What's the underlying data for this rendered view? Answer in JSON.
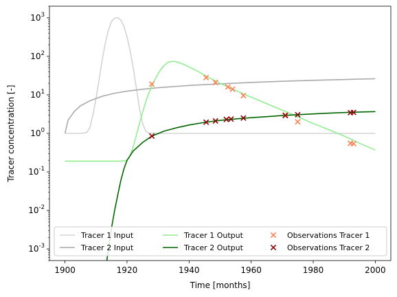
{
  "chart_data": {
    "type": "line",
    "title": "",
    "xlabel": "Time [months]",
    "ylabel": "Tracer concentration [-]",
    "xlim": [
      1895,
      2005
    ],
    "ylim": [
      0.0005,
      2000
    ],
    "yscale": "log",
    "grid": false,
    "legend_position": "lower center",
    "x_ticks": [
      "1900",
      "1920",
      "1940",
      "1960",
      "1980",
      "2000"
    ],
    "y_ticks": [
      {
        "base": "10",
        "exp": "-3",
        "value": 0.001
      },
      {
        "base": "10",
        "exp": "-2",
        "value": 0.01
      },
      {
        "base": "10",
        "exp": "-1",
        "value": 0.1
      },
      {
        "base": "10",
        "exp": "0",
        "value": 1
      },
      {
        "base": "10",
        "exp": "1",
        "value": 10
      },
      {
        "base": "10",
        "exp": "2",
        "value": 100
      },
      {
        "base": "10",
        "exp": "3",
        "value": 1000
      }
    ],
    "series": [
      {
        "name": "Tracer 1 Input",
        "kind": "line",
        "color": "#d3d3d3",
        "points": [
          [
            1900,
            1.0
          ],
          [
            1905,
            1.0
          ],
          [
            1907,
            1.05
          ],
          [
            1908,
            1.4
          ],
          [
            1909,
            3
          ],
          [
            1910,
            8
          ],
          [
            1911,
            25
          ],
          [
            1912,
            80
          ],
          [
            1913,
            220
          ],
          [
            1914,
            480
          ],
          [
            1915,
            800
          ],
          [
            1916,
            980
          ],
          [
            1917,
            1000
          ],
          [
            1918,
            880
          ],
          [
            1919,
            600
          ],
          [
            1920,
            320
          ],
          [
            1921,
            140
          ],
          [
            1922,
            50
          ],
          [
            1923,
            15
          ],
          [
            1924,
            4.5
          ],
          [
            1925,
            1.8
          ],
          [
            1926,
            1.15
          ],
          [
            1927,
            1.02
          ],
          [
            1930,
            1.0
          ],
          [
            1950,
            1.0
          ],
          [
            1980,
            1.0
          ],
          [
            2000,
            1.0
          ]
        ]
      },
      {
        "name": "Tracer 2 Input",
        "kind": "line",
        "color": "#a9a9a9",
        "points": [
          [
            1900,
            1.0
          ],
          [
            1901,
            2.2
          ],
          [
            1903,
            3.7
          ],
          [
            1905,
            5.2
          ],
          [
            1908,
            7.0
          ],
          [
            1912,
            9.2
          ],
          [
            1916,
            11.0
          ],
          [
            1920,
            12.5
          ],
          [
            1925,
            14.0
          ],
          [
            1930,
            15.3
          ],
          [
            1940,
            17.5
          ],
          [
            1950,
            19.3
          ],
          [
            1960,
            21.0
          ],
          [
            1970,
            22.5
          ],
          [
            1980,
            23.8
          ],
          [
            1990,
            25.0
          ],
          [
            2000,
            26.2
          ]
        ]
      },
      {
        "name": "Tracer 1 Output",
        "kind": "line",
        "color": "#90ee90",
        "points": [
          [
            1900,
            0.19
          ],
          [
            1918,
            0.19
          ],
          [
            1920,
            0.2
          ],
          [
            1921,
            0.26
          ],
          [
            1922,
            0.45
          ],
          [
            1923,
            0.9
          ],
          [
            1924,
            1.8
          ],
          [
            1925,
            3.5
          ],
          [
            1926,
            6.5
          ],
          [
            1927,
            11
          ],
          [
            1928,
            17
          ],
          [
            1929,
            25
          ],
          [
            1930,
            35
          ],
          [
            1931,
            47
          ],
          [
            1932,
            58
          ],
          [
            1933,
            68
          ],
          [
            1934,
            73
          ],
          [
            1935,
            74
          ],
          [
            1936,
            72
          ],
          [
            1938,
            63
          ],
          [
            1940,
            53
          ],
          [
            1943,
            40
          ],
          [
            1946,
            29
          ],
          [
            1950,
            20
          ],
          [
            1955,
            13
          ],
          [
            1960,
            8.7
          ],
          [
            1965,
            5.9
          ],
          [
            1970,
            4.0
          ],
          [
            1975,
            2.7
          ],
          [
            1980,
            1.8
          ],
          [
            1985,
            1.25
          ],
          [
            1990,
            0.85
          ],
          [
            1995,
            0.55
          ],
          [
            2000,
            0.37
          ]
        ]
      },
      {
        "name": "Tracer 2 Output",
        "kind": "line",
        "color": "#006400",
        "points": [
          [
            1913.5,
            0.0005
          ],
          [
            1914,
            0.001
          ],
          [
            1915,
            0.0035
          ],
          [
            1916,
            0.01
          ],
          [
            1917,
            0.025
          ],
          [
            1918,
            0.06
          ],
          [
            1919,
            0.12
          ],
          [
            1920,
            0.2
          ],
          [
            1922,
            0.35
          ],
          [
            1925,
            0.58
          ],
          [
            1928,
            0.85
          ],
          [
            1932,
            1.15
          ],
          [
            1936,
            1.4
          ],
          [
            1940,
            1.65
          ],
          [
            1945,
            1.93
          ],
          [
            1950,
            2.18
          ],
          [
            1955,
            2.38
          ],
          [
            1960,
            2.55
          ],
          [
            1965,
            2.72
          ],
          [
            1970,
            2.9
          ],
          [
            1975,
            3.05
          ],
          [
            1980,
            3.2
          ],
          [
            1985,
            3.35
          ],
          [
            1990,
            3.47
          ],
          [
            1995,
            3.58
          ],
          [
            2000,
            3.68
          ]
        ]
      },
      {
        "name": "Observations Tracer 1",
        "kind": "scatter",
        "marker": "x",
        "color": "#ff7f50",
        "points": [
          [
            1928,
            19
          ],
          [
            1945.5,
            28
          ],
          [
            1948.5,
            21
          ],
          [
            1952.5,
            16
          ],
          [
            1954,
            14
          ],
          [
            1957.5,
            9.5
          ],
          [
            1971,
            3.0
          ],
          [
            1975,
            2.0
          ],
          [
            1992,
            0.55
          ],
          [
            1993,
            0.54
          ]
        ]
      },
      {
        "name": "Observations Tracer 2",
        "kind": "scatter",
        "marker": "x",
        "color": "#8b0000",
        "points": [
          [
            1928,
            0.85
          ],
          [
            1945.5,
            1.95
          ],
          [
            1948.5,
            2.1
          ],
          [
            1952,
            2.3
          ],
          [
            1953.5,
            2.35
          ],
          [
            1957.5,
            2.5
          ],
          [
            1971,
            2.9
          ],
          [
            1975,
            3.05
          ],
          [
            1992,
            3.45
          ],
          [
            1993,
            3.5
          ]
        ]
      }
    ]
  }
}
